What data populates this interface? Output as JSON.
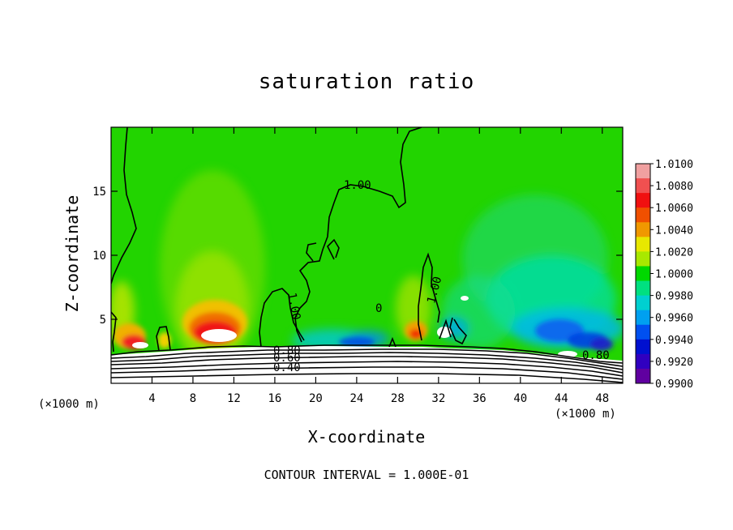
{
  "chart_data": {
    "type": "heatmap",
    "title": "saturation ratio",
    "xlabel": "X-coordinate",
    "ylabel": "Z-coordinate",
    "x_unit": "(×1000 m)",
    "xlim": [
      0,
      50
    ],
    "ylim": [
      0,
      20
    ],
    "x_ticks": [
      4,
      8,
      12,
      16,
      20,
      24,
      28,
      32,
      36,
      40,
      44,
      48
    ],
    "y_ticks": [
      5,
      10,
      15
    ],
    "colorbar": {
      "min": 0.99,
      "max": 1.01,
      "labels": [
        "1.0100",
        "1.0080",
        "1.0060",
        "1.0040",
        "1.0020",
        "1.0000",
        "0.9980",
        "0.9960",
        "0.9940",
        "0.9920",
        "0.9900"
      ],
      "colors": [
        "#f0a0a0",
        "#f05050",
        "#f01010",
        "#f05000",
        "#f09800",
        "#e8e800",
        "#a8e800",
        "#00d800",
        "#00e080",
        "#00d0d0",
        "#00a0f0",
        "#0050f0",
        "#0010d0",
        "#3000c0",
        "#6000a0"
      ]
    },
    "contour_labels": [
      "1.00",
      "1.00",
      "1.00",
      "0",
      "0.80",
      "0.60",
      "0.40",
      "0.80"
    ],
    "contour_interval_text": "CONTOUR INTERVAL = 1.000E-01"
  }
}
